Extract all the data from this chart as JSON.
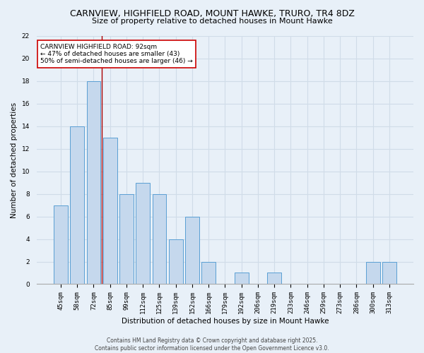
{
  "title1": "CARNVIEW, HIGHFIELD ROAD, MOUNT HAWKE, TRURO, TR4 8DZ",
  "title2": "Size of property relative to detached houses in Mount Hawke",
  "xlabel": "Distribution of detached houses by size in Mount Hawke",
  "ylabel": "Number of detached properties",
  "categories": [
    "45sqm",
    "58sqm",
    "72sqm",
    "85sqm",
    "99sqm",
    "112sqm",
    "125sqm",
    "139sqm",
    "152sqm",
    "166sqm",
    "179sqm",
    "192sqm",
    "206sqm",
    "219sqm",
    "233sqm",
    "246sqm",
    "259sqm",
    "273sqm",
    "286sqm",
    "300sqm",
    "313sqm"
  ],
  "values": [
    7,
    14,
    18,
    13,
    8,
    9,
    8,
    4,
    6,
    2,
    0,
    1,
    0,
    1,
    0,
    0,
    0,
    0,
    0,
    2,
    2
  ],
  "bar_color": "#c5d8ed",
  "bar_edge_color": "#5a9fd4",
  "vline_x": 2.5,
  "vline_color": "#aa0000",
  "annotation_text": "CARNVIEW HIGHFIELD ROAD: 92sqm\n← 47% of detached houses are smaller (43)\n50% of semi-detached houses are larger (46) →",
  "annotation_box_color": "white",
  "annotation_box_edge_color": "#cc0000",
  "ylim": [
    0,
    22
  ],
  "yticks": [
    0,
    2,
    4,
    6,
    8,
    10,
    12,
    14,
    16,
    18,
    20,
    22
  ],
  "background_color": "#e8f0f8",
  "grid_color": "#d0dce8",
  "footer_text": "Contains HM Land Registry data © Crown copyright and database right 2025.\nContains public sector information licensed under the Open Government Licence v3.0.",
  "title_fontsize": 9,
  "subtitle_fontsize": 8,
  "ylabel_fontsize": 7.5,
  "xlabel_fontsize": 7.5,
  "tick_fontsize": 6.5,
  "annot_fontsize": 6.5,
  "footer_fontsize": 5.5
}
